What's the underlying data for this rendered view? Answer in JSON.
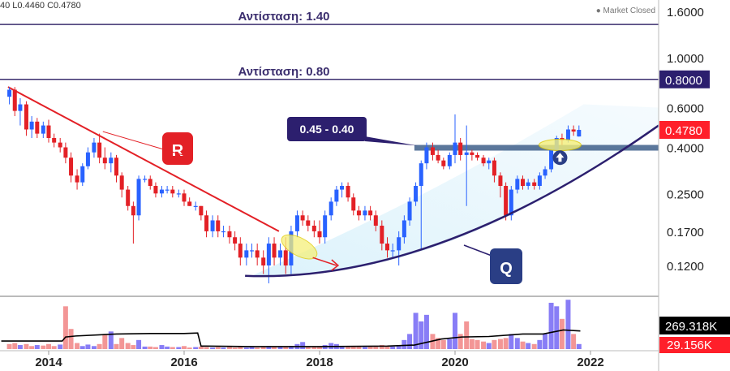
{
  "header": {
    "ohlc_text": "40  L0.4460  C0.4780",
    "market_status": "Market Closed"
  },
  "colors": {
    "up": "#2962ff",
    "down": "#e32026",
    "resistance": "#3b2e6e",
    "trendline_r": "#e32026",
    "curve_q": "#2c1f6e",
    "support_zone": "#3e5f8a",
    "highlight": "#f5f07a",
    "price_tag": "#ff1f2a",
    "label_dark": "#2c1f6e",
    "label_q": "#2a3e85",
    "volume_up": "#7b6ff5",
    "volume_down": "#f28b8b",
    "volume_ma": "#000000"
  },
  "chart_data": {
    "type": "candlestick",
    "scale": "log",
    "ylim": [
      0.09,
      1.8
    ],
    "xlim": [
      2013.3,
      2023.0
    ],
    "y_ticks": [
      "1.6000",
      "1.0000",
      "0.6000",
      "0.4000",
      "0.2500",
      "0.1700",
      "0.1200"
    ],
    "x_ticks": [
      "2014",
      "2016",
      "2018",
      "2020",
      "2022"
    ],
    "resistance_lines": [
      {
        "value": 1.4,
        "label": "Αντίσταση: 1.40"
      },
      {
        "value": 0.8,
        "label": "Αντίσταση: 0.80"
      }
    ],
    "price_tags": [
      {
        "value": 0.8,
        "text": "0.8000",
        "style": "dark"
      },
      {
        "value": 0.478,
        "text": "0.4780",
        "style": "red"
      }
    ],
    "support_zone": {
      "value": 0.4,
      "from": 2019.4,
      "label": "0.45 - 0.40"
    },
    "trendline_R": {
      "label": "R",
      "from": [
        2013.4,
        0.74
      ],
      "to": [
        2017.4,
        0.17
      ]
    },
    "curve_Q": {
      "label": "Q"
    },
    "candles": [
      [
        2013.42,
        0.67,
        0.74,
        0.62,
        0.72
      ],
      [
        2013.5,
        0.72,
        0.74,
        0.55,
        0.58
      ],
      [
        2013.58,
        0.58,
        0.66,
        0.5,
        0.62
      ],
      [
        2013.67,
        0.62,
        0.64,
        0.45,
        0.48
      ],
      [
        2013.75,
        0.48,
        0.55,
        0.44,
        0.52
      ],
      [
        2013.83,
        0.52,
        0.54,
        0.44,
        0.46
      ],
      [
        2013.92,
        0.46,
        0.52,
        0.44,
        0.5
      ],
      [
        2014.0,
        0.5,
        0.53,
        0.42,
        0.44
      ],
      [
        2014.08,
        0.44,
        0.46,
        0.4,
        0.42
      ],
      [
        2014.17,
        0.42,
        0.44,
        0.38,
        0.4
      ],
      [
        2014.25,
        0.4,
        0.42,
        0.34,
        0.36
      ],
      [
        2014.33,
        0.36,
        0.38,
        0.28,
        0.3
      ],
      [
        2014.42,
        0.3,
        0.32,
        0.26,
        0.28
      ],
      [
        2014.5,
        0.28,
        0.34,
        0.27,
        0.33
      ],
      [
        2014.58,
        0.33,
        0.4,
        0.32,
        0.38
      ],
      [
        2014.67,
        0.38,
        0.44,
        0.36,
        0.42
      ],
      [
        2014.75,
        0.42,
        0.46,
        0.34,
        0.36
      ],
      [
        2014.83,
        0.36,
        0.4,
        0.32,
        0.34
      ],
      [
        2014.92,
        0.34,
        0.38,
        0.31,
        0.36
      ],
      [
        2015.0,
        0.36,
        0.37,
        0.28,
        0.3
      ],
      [
        2015.08,
        0.3,
        0.31,
        0.24,
        0.26
      ],
      [
        2015.17,
        0.26,
        0.27,
        0.21,
        0.22
      ],
      [
        2015.25,
        0.22,
        0.23,
        0.15,
        0.2
      ],
      [
        2015.33,
        0.2,
        0.3,
        0.19,
        0.29
      ],
      [
        2015.42,
        0.29,
        0.3,
        0.28,
        0.29
      ],
      [
        2015.5,
        0.29,
        0.3,
        0.26,
        0.27
      ],
      [
        2015.58,
        0.27,
        0.28,
        0.24,
        0.25
      ],
      [
        2015.67,
        0.25,
        0.27,
        0.24,
        0.26
      ],
      [
        2015.75,
        0.26,
        0.27,
        0.25,
        0.26
      ],
      [
        2015.83,
        0.26,
        0.27,
        0.24,
        0.25
      ],
      [
        2015.92,
        0.25,
        0.26,
        0.24,
        0.25
      ],
      [
        2016.0,
        0.25,
        0.26,
        0.22,
        0.23
      ],
      [
        2016.08,
        0.23,
        0.24,
        0.22,
        0.22
      ],
      [
        2016.17,
        0.22,
        0.23,
        0.21,
        0.22
      ],
      [
        2016.25,
        0.22,
        0.22,
        0.19,
        0.2
      ],
      [
        2016.33,
        0.2,
        0.21,
        0.16,
        0.17
      ],
      [
        2016.42,
        0.17,
        0.2,
        0.16,
        0.19
      ],
      [
        2016.5,
        0.19,
        0.2,
        0.16,
        0.17
      ],
      [
        2016.58,
        0.17,
        0.18,
        0.16,
        0.17
      ],
      [
        2016.67,
        0.17,
        0.18,
        0.15,
        0.16
      ],
      [
        2016.75,
        0.16,
        0.17,
        0.14,
        0.15
      ],
      [
        2016.83,
        0.15,
        0.16,
        0.12,
        0.13
      ],
      [
        2016.92,
        0.13,
        0.15,
        0.12,
        0.14
      ],
      [
        2017.0,
        0.14,
        0.15,
        0.13,
        0.14
      ],
      [
        2017.08,
        0.14,
        0.15,
        0.12,
        0.13
      ],
      [
        2017.17,
        0.13,
        0.14,
        0.11,
        0.12
      ],
      [
        2017.25,
        0.12,
        0.16,
        0.1,
        0.15
      ],
      [
        2017.33,
        0.15,
        0.16,
        0.12,
        0.13
      ],
      [
        2017.42,
        0.13,
        0.15,
        0.12,
        0.14
      ],
      [
        2017.5,
        0.14,
        0.16,
        0.11,
        0.12
      ],
      [
        2017.58,
        0.12,
        0.18,
        0.11,
        0.17
      ],
      [
        2017.67,
        0.17,
        0.21,
        0.16,
        0.2
      ],
      [
        2017.75,
        0.2,
        0.21,
        0.18,
        0.19
      ],
      [
        2017.83,
        0.19,
        0.2,
        0.17,
        0.18
      ],
      [
        2017.92,
        0.18,
        0.19,
        0.16,
        0.17
      ],
      [
        2018.0,
        0.17,
        0.19,
        0.15,
        0.16
      ],
      [
        2018.08,
        0.16,
        0.21,
        0.15,
        0.2
      ],
      [
        2018.17,
        0.2,
        0.24,
        0.19,
        0.23
      ],
      [
        2018.25,
        0.23,
        0.27,
        0.22,
        0.26
      ],
      [
        2018.33,
        0.26,
        0.28,
        0.24,
        0.27
      ],
      [
        2018.42,
        0.27,
        0.28,
        0.23,
        0.24
      ],
      [
        2018.5,
        0.24,
        0.25,
        0.2,
        0.21
      ],
      [
        2018.58,
        0.21,
        0.22,
        0.19,
        0.2
      ],
      [
        2018.67,
        0.2,
        0.22,
        0.19,
        0.21
      ],
      [
        2018.75,
        0.21,
        0.22,
        0.19,
        0.2
      ],
      [
        2018.83,
        0.2,
        0.21,
        0.17,
        0.18
      ],
      [
        2018.92,
        0.18,
        0.19,
        0.14,
        0.15
      ],
      [
        2019.0,
        0.15,
        0.16,
        0.13,
        0.14
      ],
      [
        2019.08,
        0.14,
        0.15,
        0.13,
        0.14
      ],
      [
        2019.17,
        0.14,
        0.17,
        0.12,
        0.16
      ],
      [
        2019.25,
        0.16,
        0.2,
        0.15,
        0.19
      ],
      [
        2019.33,
        0.19,
        0.24,
        0.18,
        0.23
      ],
      [
        2019.42,
        0.23,
        0.28,
        0.22,
        0.27
      ],
      [
        2019.5,
        0.27,
        0.35,
        0.14,
        0.34
      ],
      [
        2019.58,
        0.34,
        0.42,
        0.32,
        0.4
      ],
      [
        2019.67,
        0.4,
        0.42,
        0.35,
        0.37
      ],
      [
        2019.75,
        0.37,
        0.39,
        0.34,
        0.35
      ],
      [
        2019.83,
        0.35,
        0.36,
        0.32,
        0.33
      ],
      [
        2019.92,
        0.33,
        0.38,
        0.32,
        0.37
      ],
      [
        2020.0,
        0.37,
        0.56,
        0.34,
        0.42
      ],
      [
        2020.08,
        0.42,
        0.44,
        0.35,
        0.37
      ],
      [
        2020.17,
        0.37,
        0.5,
        0.22,
        0.38
      ],
      [
        2020.25,
        0.38,
        0.39,
        0.35,
        0.37
      ],
      [
        2020.33,
        0.37,
        0.38,
        0.35,
        0.36
      ],
      [
        2020.42,
        0.36,
        0.37,
        0.33,
        0.34
      ],
      [
        2020.5,
        0.34,
        0.36,
        0.32,
        0.35
      ],
      [
        2020.58,
        0.35,
        0.36,
        0.28,
        0.3
      ],
      [
        2020.67,
        0.3,
        0.31,
        0.24,
        0.27
      ],
      [
        2020.75,
        0.27,
        0.28,
        0.19,
        0.2
      ],
      [
        2020.83,
        0.2,
        0.27,
        0.19,
        0.26
      ],
      [
        2020.92,
        0.26,
        0.3,
        0.25,
        0.29
      ],
      [
        2021.0,
        0.29,
        0.3,
        0.26,
        0.27
      ],
      [
        2021.08,
        0.27,
        0.29,
        0.26,
        0.28
      ],
      [
        2021.17,
        0.28,
        0.29,
        0.26,
        0.27
      ],
      [
        2021.25,
        0.27,
        0.31,
        0.26,
        0.3
      ],
      [
        2021.33,
        0.3,
        0.33,
        0.29,
        0.32
      ],
      [
        2021.42,
        0.32,
        0.4,
        0.31,
        0.39
      ],
      [
        2021.5,
        0.39,
        0.45,
        0.37,
        0.44
      ],
      [
        2021.58,
        0.44,
        0.46,
        0.41,
        0.43
      ],
      [
        2021.67,
        0.43,
        0.5,
        0.42,
        0.48
      ],
      [
        2021.75,
        0.48,
        0.5,
        0.45,
        0.47
      ],
      [
        2021.83,
        0.447,
        0.5,
        0.446,
        0.478
      ]
    ],
    "volume": {
      "ticks": [
        "269.318K",
        "29.156K"
      ],
      "bars": [
        [
          2013.42,
          0.1,
          0
        ],
        [
          2013.5,
          0.12,
          0
        ],
        [
          2013.58,
          0.08,
          1
        ],
        [
          2013.67,
          0.1,
          0
        ],
        [
          2013.75,
          0.06,
          0
        ],
        [
          2013.83,
          0.08,
          1
        ],
        [
          2013.92,
          0.07,
          0
        ],
        [
          2014.0,
          0.1,
          0
        ],
        [
          2014.08,
          0.06,
          0
        ],
        [
          2014.17,
          0.09,
          1
        ],
        [
          2014.25,
          0.85,
          0
        ],
        [
          2014.33,
          0.4,
          0
        ],
        [
          2014.42,
          0.12,
          0
        ],
        [
          2014.5,
          0.06,
          1
        ],
        [
          2014.58,
          0.09,
          1
        ],
        [
          2014.67,
          0.06,
          1
        ],
        [
          2014.75,
          0.1,
          0
        ],
        [
          2014.83,
          0.28,
          0
        ],
        [
          2014.92,
          0.35,
          1
        ],
        [
          2015.0,
          0.1,
          0
        ],
        [
          2015.08,
          0.22,
          0
        ],
        [
          2015.17,
          0.12,
          0
        ],
        [
          2015.25,
          0.08,
          0
        ],
        [
          2015.33,
          0.18,
          1
        ],
        [
          2015.42,
          0.05,
          1
        ],
        [
          2015.5,
          0.05,
          0
        ],
        [
          2015.58,
          0.04,
          0
        ],
        [
          2015.67,
          0.08,
          1
        ],
        [
          2015.75,
          0.05,
          1
        ],
        [
          2015.83,
          0.04,
          0
        ],
        [
          2015.92,
          0.04,
          1
        ],
        [
          2016.0,
          0.06,
          0
        ],
        [
          2016.08,
          0.03,
          0
        ],
        [
          2016.17,
          0.04,
          1
        ],
        [
          2016.25,
          0.05,
          0
        ],
        [
          2016.33,
          0.04,
          0
        ],
        [
          2016.42,
          0.03,
          1
        ],
        [
          2016.5,
          0.04,
          0
        ],
        [
          2016.58,
          0.03,
          1
        ],
        [
          2016.67,
          0.04,
          0
        ],
        [
          2016.75,
          0.03,
          0
        ],
        [
          2016.83,
          0.05,
          0
        ],
        [
          2016.92,
          0.03,
          1
        ],
        [
          2017.0,
          0.04,
          1
        ],
        [
          2017.08,
          0.03,
          0
        ],
        [
          2017.17,
          0.04,
          0
        ],
        [
          2017.25,
          0.06,
          1
        ],
        [
          2017.33,
          0.04,
          0
        ],
        [
          2017.42,
          0.05,
          1
        ],
        [
          2017.5,
          0.04,
          0
        ],
        [
          2017.58,
          0.06,
          1
        ],
        [
          2017.67,
          0.1,
          1
        ],
        [
          2017.75,
          0.14,
          1
        ],
        [
          2017.83,
          0.05,
          0
        ],
        [
          2017.92,
          0.04,
          0
        ],
        [
          2018.0,
          0.05,
          0
        ],
        [
          2018.08,
          0.08,
          1
        ],
        [
          2018.17,
          0.12,
          1
        ],
        [
          2018.25,
          0.1,
          1
        ],
        [
          2018.33,
          0.06,
          1
        ],
        [
          2018.42,
          0.05,
          0
        ],
        [
          2018.5,
          0.06,
          0
        ],
        [
          2018.58,
          0.05,
          0
        ],
        [
          2018.67,
          0.04,
          1
        ],
        [
          2018.75,
          0.05,
          0
        ],
        [
          2018.83,
          0.06,
          0
        ],
        [
          2018.92,
          0.08,
          0
        ],
        [
          2019.0,
          0.06,
          0
        ],
        [
          2019.08,
          0.05,
          1
        ],
        [
          2019.17,
          0.08,
          1
        ],
        [
          2019.25,
          0.18,
          1
        ],
        [
          2019.33,
          0.3,
          1
        ],
        [
          2019.42,
          0.72,
          1
        ],
        [
          2019.5,
          0.55,
          1
        ],
        [
          2019.58,
          0.68,
          1
        ],
        [
          2019.67,
          0.3,
          0
        ],
        [
          2019.75,
          0.22,
          0
        ],
        [
          2019.83,
          0.18,
          0
        ],
        [
          2019.92,
          0.2,
          1
        ],
        [
          2020.0,
          0.72,
          1
        ],
        [
          2020.08,
          0.3,
          0
        ],
        [
          2020.17,
          0.55,
          0
        ],
        [
          2020.25,
          0.2,
          0
        ],
        [
          2020.33,
          0.18,
          0
        ],
        [
          2020.42,
          0.15,
          0
        ],
        [
          2020.5,
          0.12,
          1
        ],
        [
          2020.58,
          0.18,
          0
        ],
        [
          2020.67,
          0.2,
          0
        ],
        [
          2020.75,
          0.22,
          0
        ],
        [
          2020.83,
          0.3,
          1
        ],
        [
          2020.92,
          0.22,
          1
        ],
        [
          2021.0,
          0.15,
          0
        ],
        [
          2021.08,
          0.12,
          1
        ],
        [
          2021.17,
          0.1,
          0
        ],
        [
          2021.25,
          0.18,
          1
        ],
        [
          2021.33,
          0.3,
          1
        ],
        [
          2021.42,
          0.92,
          1
        ],
        [
          2021.5,
          0.85,
          1
        ],
        [
          2021.58,
          0.6,
          0
        ],
        [
          2021.67,
          0.98,
          1
        ],
        [
          2021.75,
          0.3,
          0
        ],
        [
          2021.83,
          0.1,
          1
        ]
      ],
      "ma": [
        [
          2013.3,
          0.16
        ],
        [
          2014.2,
          0.16
        ],
        [
          2014.25,
          0.24
        ],
        [
          2014.4,
          0.26
        ],
        [
          2015.0,
          0.3
        ],
        [
          2015.5,
          0.31
        ],
        [
          2016.0,
          0.31
        ],
        [
          2016.2,
          0.32
        ],
        [
          2016.25,
          0.06
        ],
        [
          2017.0,
          0.05
        ],
        [
          2018.0,
          0.05
        ],
        [
          2019.0,
          0.06
        ],
        [
          2019.4,
          0.08
        ],
        [
          2019.8,
          0.2
        ],
        [
          2020.1,
          0.24
        ],
        [
          2020.5,
          0.25
        ],
        [
          2021.0,
          0.3
        ],
        [
          2021.3,
          0.3
        ],
        [
          2021.6,
          0.38
        ],
        [
          2021.85,
          0.36
        ]
      ]
    }
  }
}
